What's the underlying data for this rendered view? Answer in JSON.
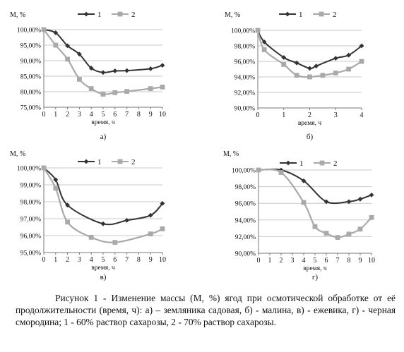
{
  "chart_data": [
    {
      "type": "line",
      "panel_label": "а)",
      "ylabel": "М, %",
      "xlabel": "время, ч",
      "ylim": [
        75,
        100
      ],
      "yticks": [
        "75,00%",
        "80,00%",
        "85,00%",
        "90,00%",
        "95,00%",
        "100,00%"
      ],
      "xticks": [
        "0",
        "1",
        "2",
        "3",
        "4",
        "5",
        "6",
        "7",
        "8",
        "9",
        "10"
      ],
      "grid": true,
      "legend": "top",
      "series": [
        {
          "name": "1",
          "x": [
            0,
            1,
            2,
            3,
            4,
            5,
            6,
            7,
            9,
            10
          ],
          "values": [
            100,
            99,
            94.8,
            92.1,
            87.6,
            86.2,
            86.7,
            86.8,
            87.4,
            88.5
          ]
        },
        {
          "name": "2",
          "x": [
            0,
            1,
            2,
            3,
            4,
            5,
            6,
            7,
            9,
            10
          ],
          "values": [
            100,
            95,
            90.5,
            84,
            81,
            79.2,
            79.7,
            80.1,
            81,
            81.5
          ]
        }
      ]
    },
    {
      "type": "line",
      "panel_label": "б)",
      "ylabel": "М, %",
      "xlabel": "время, ч",
      "ylim": [
        90,
        100
      ],
      "yticks": [
        "90,00%",
        "92,00%",
        "94,00%",
        "96,00%",
        "98,00%",
        "100,00%"
      ],
      "xticks": [
        "0",
        "1",
        "2",
        "3",
        "4"
      ],
      "grid": true,
      "legend": "top",
      "series": [
        {
          "name": "1",
          "x": [
            0,
            0.25,
            1,
            1.5,
            2,
            2.25,
            3,
            3.5,
            4
          ],
          "values": [
            100,
            98.5,
            96.5,
            95.8,
            95.1,
            95.4,
            96.4,
            96.8,
            98
          ]
        },
        {
          "name": "2",
          "x": [
            0,
            0.25,
            1,
            1.5,
            2,
            2.5,
            3,
            3.5,
            4
          ],
          "values": [
            100,
            97.5,
            95.6,
            94.2,
            94,
            94.2,
            94.5,
            95,
            96
          ]
        }
      ]
    },
    {
      "type": "line",
      "panel_label": "в)",
      "ylabel": "М, %",
      "xlabel": "время, ч",
      "ylim": [
        95,
        100
      ],
      "yticks": [
        "95,00%",
        "96,00%",
        "97,00%",
        "98,00%",
        "99,00%",
        "100,00%"
      ],
      "xticks": [
        "0",
        "1",
        "2",
        "3",
        "4",
        "5",
        "6",
        "7",
        "8",
        "9",
        "10"
      ],
      "grid": true,
      "legend": "top",
      "series": [
        {
          "name": "1",
          "x": [
            0,
            1,
            2,
            5,
            7,
            9,
            10
          ],
          "values": [
            100,
            99.3,
            97.8,
            96.7,
            96.9,
            97.2,
            97.9
          ]
        },
        {
          "name": "2",
          "x": [
            0,
            1,
            2,
            4,
            6,
            9,
            10
          ],
          "values": [
            100,
            98.8,
            96.8,
            95.9,
            95.6,
            96.1,
            96.4
          ]
        }
      ]
    },
    {
      "type": "line",
      "panel_label": "г)",
      "ylabel": "М, %",
      "xlabel": "время, ч",
      "ylim": [
        90,
        100
      ],
      "yticks": [
        "90,00%",
        "92,00%",
        "94,00%",
        "96,00%",
        "98,00%",
        "100,00%"
      ],
      "xticks": [
        "0",
        "1",
        "2",
        "3",
        "4",
        "5",
        "6",
        "7",
        "8",
        "9",
        "10"
      ],
      "grid": true,
      "legend": "top",
      "series": [
        {
          "name": "1",
          "x": [
            0,
            2,
            4,
            6,
            8,
            9,
            10
          ],
          "values": [
            100,
            100,
            98.7,
            96.2,
            96.2,
            96.5,
            97
          ]
        },
        {
          "name": "2",
          "x": [
            0,
            2,
            4,
            5,
            6,
            7,
            8,
            9,
            10
          ],
          "values": [
            100,
            99.7,
            96.1,
            93.2,
            92.4,
            91.9,
            92.3,
            92.9,
            94.3
          ]
        }
      ]
    }
  ],
  "colors": {
    "series_1": "#333333",
    "series_2": "#a9a9a9",
    "grid": "#c8c8c8",
    "axis": "#777777"
  },
  "caption": "Рисунок 1 - Изменение массы (М, %) ягод при осмотической обработке от её продолжительности (время, ч): а) – земляника садовая, б) - малина, в) - ежевика, г) - черная смородина; 1 - 60% раствор сахарозы, 2 - 70% раствор сахарозы."
}
